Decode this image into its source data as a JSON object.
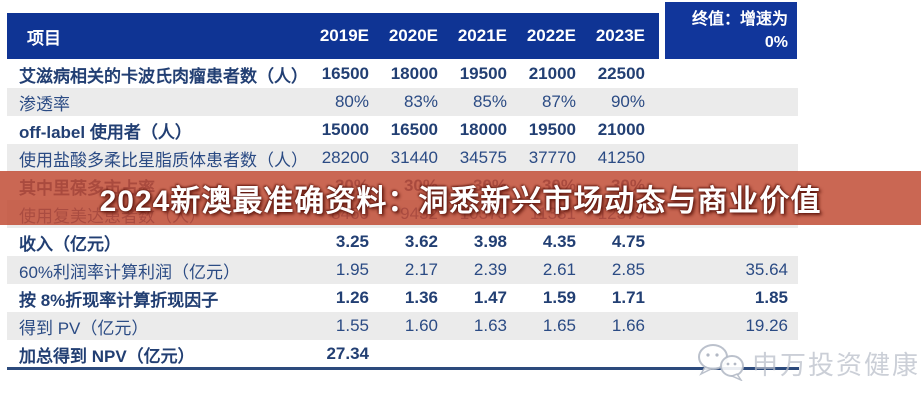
{
  "banner": {
    "text": "2024新澳最准确资料：洞悉新兴市场动态与商业价值",
    "bg_color": "#c14c35"
  },
  "table": {
    "header": {
      "project_label": "项目",
      "years": [
        "2019E",
        "2020E",
        "2021E",
        "2022E",
        "2023E"
      ],
      "terminal_label_line1": "终值：增速为",
      "terminal_label_line2": "0%",
      "header_color": "#0f3494"
    },
    "rows": [
      {
        "label": "艾滋病相关的卡波氏肉瘤患者数（人）",
        "values": [
          "16500",
          "18000",
          "19500",
          "21000",
          "22500"
        ],
        "terminal": ""
      },
      {
        "label": "渗透率",
        "values": [
          "80%",
          "83%",
          "85%",
          "87%",
          "90%"
        ],
        "terminal": ""
      },
      {
        "label": "off-label 使用者（人）",
        "values": [
          "15000",
          "16500",
          "18000",
          "19500",
          "21000"
        ],
        "terminal": ""
      },
      {
        "label": "使用盐酸多柔比星脂质体患者数（人）",
        "values": [
          "28200",
          "31440",
          "34575",
          "37770",
          "41250"
        ],
        "terminal": ""
      },
      {
        "label": "其中里葆多市占率",
        "values": [
          "30%",
          "30%",
          "30%",
          "30%",
          "30%"
        ],
        "terminal": ""
      },
      {
        "label": "使用复美达患者数（人）",
        "values": [
          "8460",
          "9432",
          "10373",
          "11331",
          "12375"
        ],
        "terminal": ""
      },
      {
        "label": "收入（亿元）",
        "values": [
          "3.25",
          "3.62",
          "3.98",
          "4.35",
          "4.75"
        ],
        "terminal": ""
      },
      {
        "label": "60%利润率计算利润（亿元）",
        "values": [
          "1.95",
          "2.17",
          "2.39",
          "2.61",
          "2.85"
        ],
        "terminal": "35.64"
      },
      {
        "label": "按 8%折现率计算折现因子",
        "values": [
          "1.26",
          "1.36",
          "1.47",
          "1.59",
          "1.71"
        ],
        "terminal": "1.85"
      },
      {
        "label": "得到 PV（亿元）",
        "values": [
          "1.55",
          "1.60",
          "1.63",
          "1.65",
          "1.66"
        ],
        "terminal": "19.26"
      },
      {
        "label": "加总得到 NPV（亿元）",
        "values": [
          "27.34",
          "",
          "",
          "",
          ""
        ],
        "terminal": ""
      }
    ],
    "stripe_color": "#ebebeb",
    "text_color": "#2b4b84"
  },
  "watermark": {
    "icon": "wechat-icon",
    "text": "申万投资健康",
    "color": "#b9bfca"
  }
}
